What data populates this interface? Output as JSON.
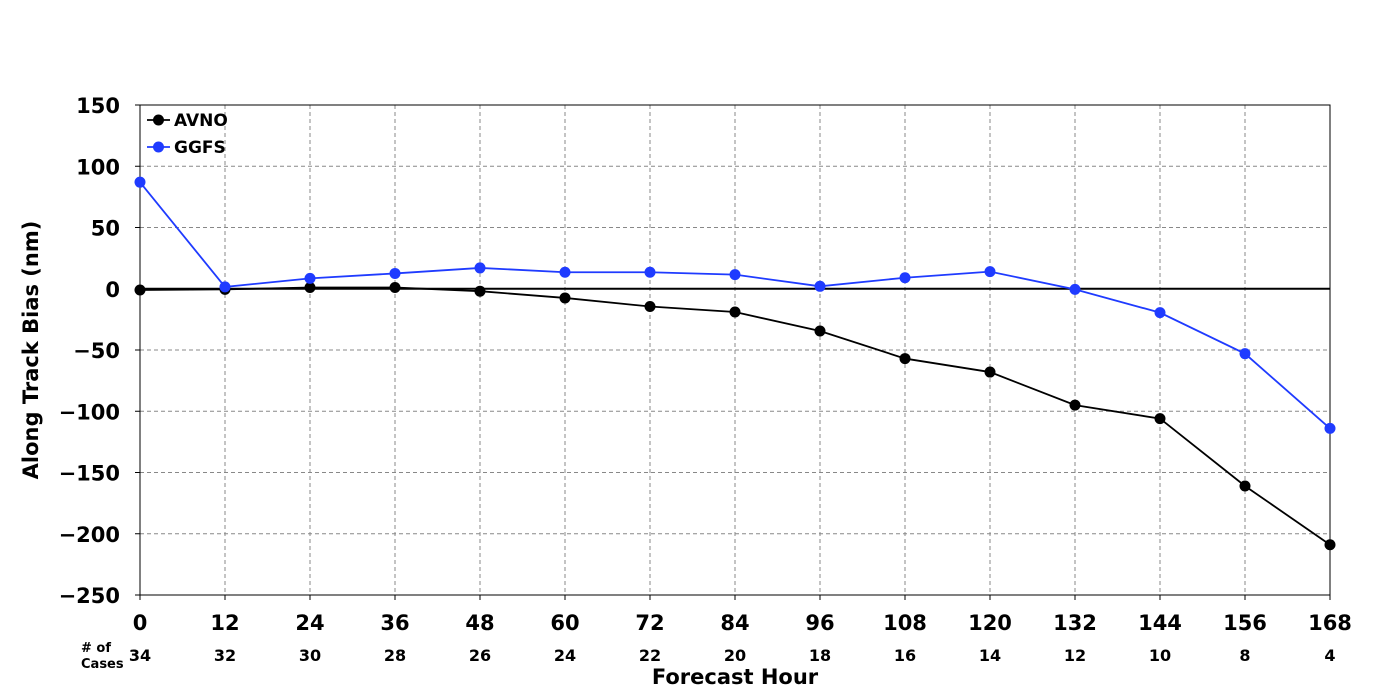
{
  "chart_data": {
    "type": "line",
    "title": "",
    "xlabel": "Forecast Hour",
    "ylabel": "Along Track Bias (nm)",
    "x": [
      0,
      12,
      24,
      36,
      48,
      60,
      72,
      84,
      96,
      108,
      120,
      132,
      144,
      156,
      168
    ],
    "xlim": [
      0,
      168
    ],
    "ylim": [
      -250,
      150
    ],
    "yticks": [
      150,
      100,
      50,
      0,
      -50,
      -100,
      -150,
      -200,
      -250
    ],
    "ytick_labels": [
      "150",
      "100",
      "50",
      "0",
      "−50",
      "−100",
      "−150",
      "−200",
      "−250"
    ],
    "grid": true,
    "zero_line": true,
    "legend_position": "upper-left",
    "cases_label": [
      "# of",
      "Cases"
    ],
    "cases": [
      34,
      32,
      30,
      28,
      26,
      24,
      22,
      20,
      18,
      16,
      14,
      12,
      10,
      8,
      4
    ],
    "series": [
      {
        "name": "AVNO",
        "color": "#000000",
        "values": [
          -1,
          -0.5,
          1,
          1,
          -2,
          -7.5,
          -14.5,
          -19,
          -34.5,
          -57,
          -68,
          -95,
          -106,
          -161,
          -209
        ]
      },
      {
        "name": "GGFS",
        "color": "#1f3bff",
        "values": [
          87,
          1.5,
          8.5,
          12.5,
          17,
          13.5,
          13.5,
          11.5,
          2,
          9,
          14,
          -0.5,
          -19.5,
          -53,
          -114
        ]
      }
    ]
  }
}
